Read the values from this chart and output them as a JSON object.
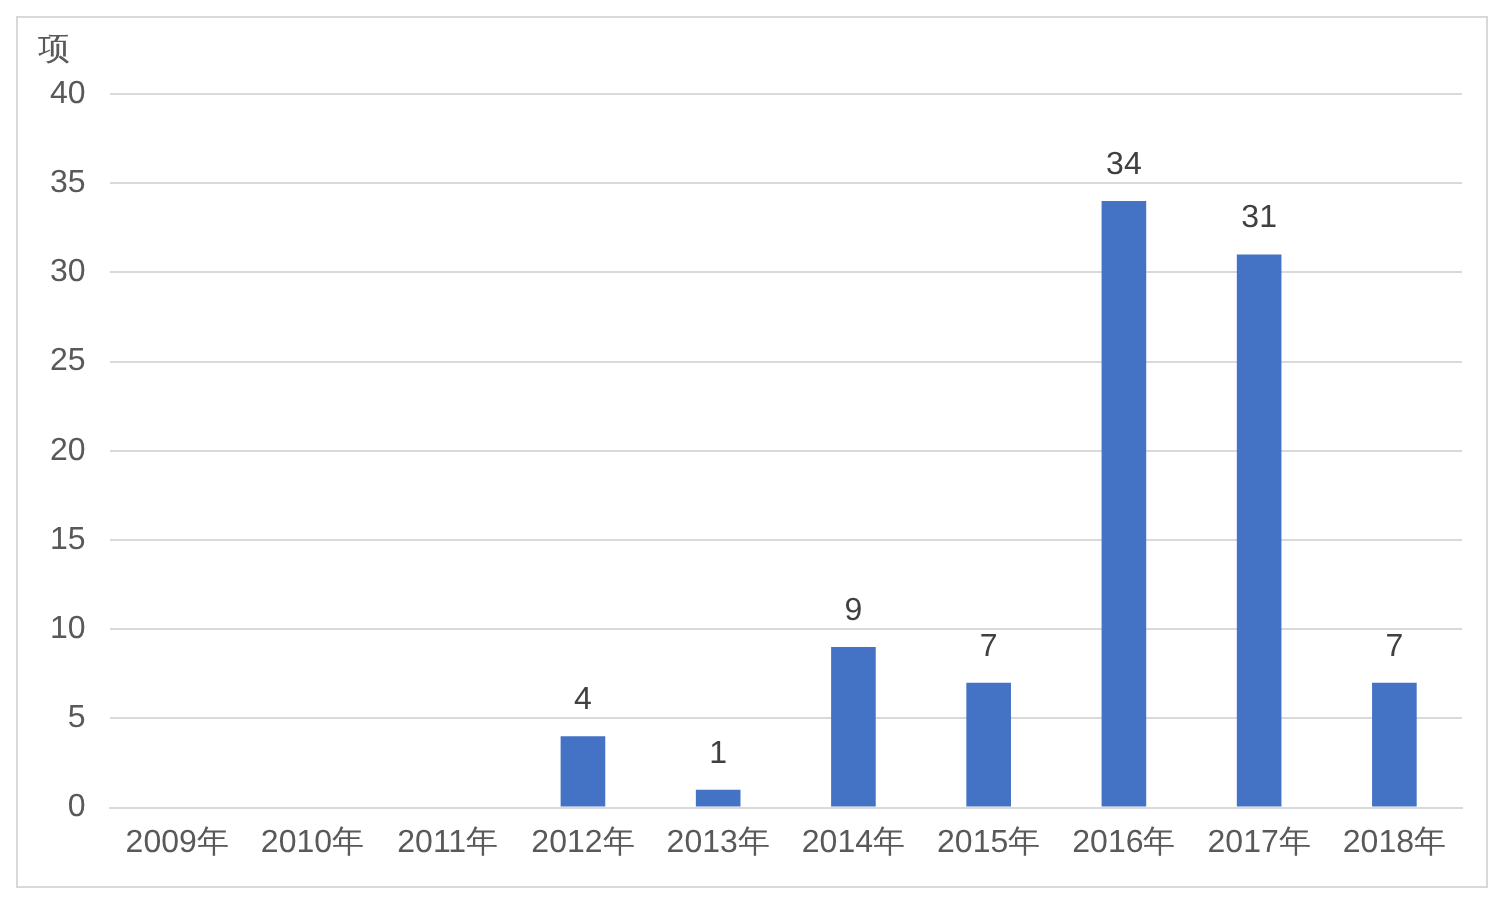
{
  "chart_data": {
    "type": "bar",
    "ylabel": "项",
    "categories": [
      "2009年",
      "2010年",
      "2011年",
      "2012年",
      "2013年",
      "2014年",
      "2015年",
      "2016年",
      "2017年",
      "2018年"
    ],
    "values": [
      0,
      0,
      0,
      4,
      1,
      9,
      7,
      34,
      31,
      7
    ],
    "value_labels": [
      null,
      null,
      null,
      "4",
      "1",
      "9",
      "7",
      "34",
      "31",
      "7"
    ],
    "color": "#4472c4",
    "ylim": [
      0,
      40
    ],
    "yticks": [
      0,
      5,
      10,
      15,
      20,
      25,
      30,
      35,
      40
    ],
    "grid": "y",
    "legend": false
  }
}
